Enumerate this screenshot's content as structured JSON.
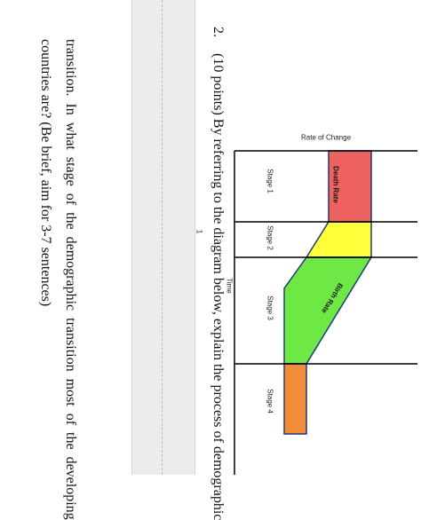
{
  "question": {
    "number": "2.",
    "line1": "(10 points) By referring to the diagram below, explain the process of demographic",
    "line2": "transition.  In  what  stage  of  the  demographic  transition  most  of  the  developing",
    "line3": "countries are? (Be brief, aim for 3-7 sentences)"
  },
  "page_number": "1",
  "diagram": {
    "y_axis_title": "Rate of Change",
    "x_axis_title": "Time",
    "stages": [
      "Stage 1",
      "Stage 2",
      "Stage 3",
      "Stage 4"
    ],
    "death_rate_label": "Death Rate",
    "birth_rate_label": "Birth Rate",
    "colors": {
      "stage1": "#ee6362",
      "stage2": "#ffff3a",
      "stage3": "#6ee844",
      "stage4": "#f28c38",
      "outline": "#1f3a78",
      "grid": "#000000"
    }
  }
}
